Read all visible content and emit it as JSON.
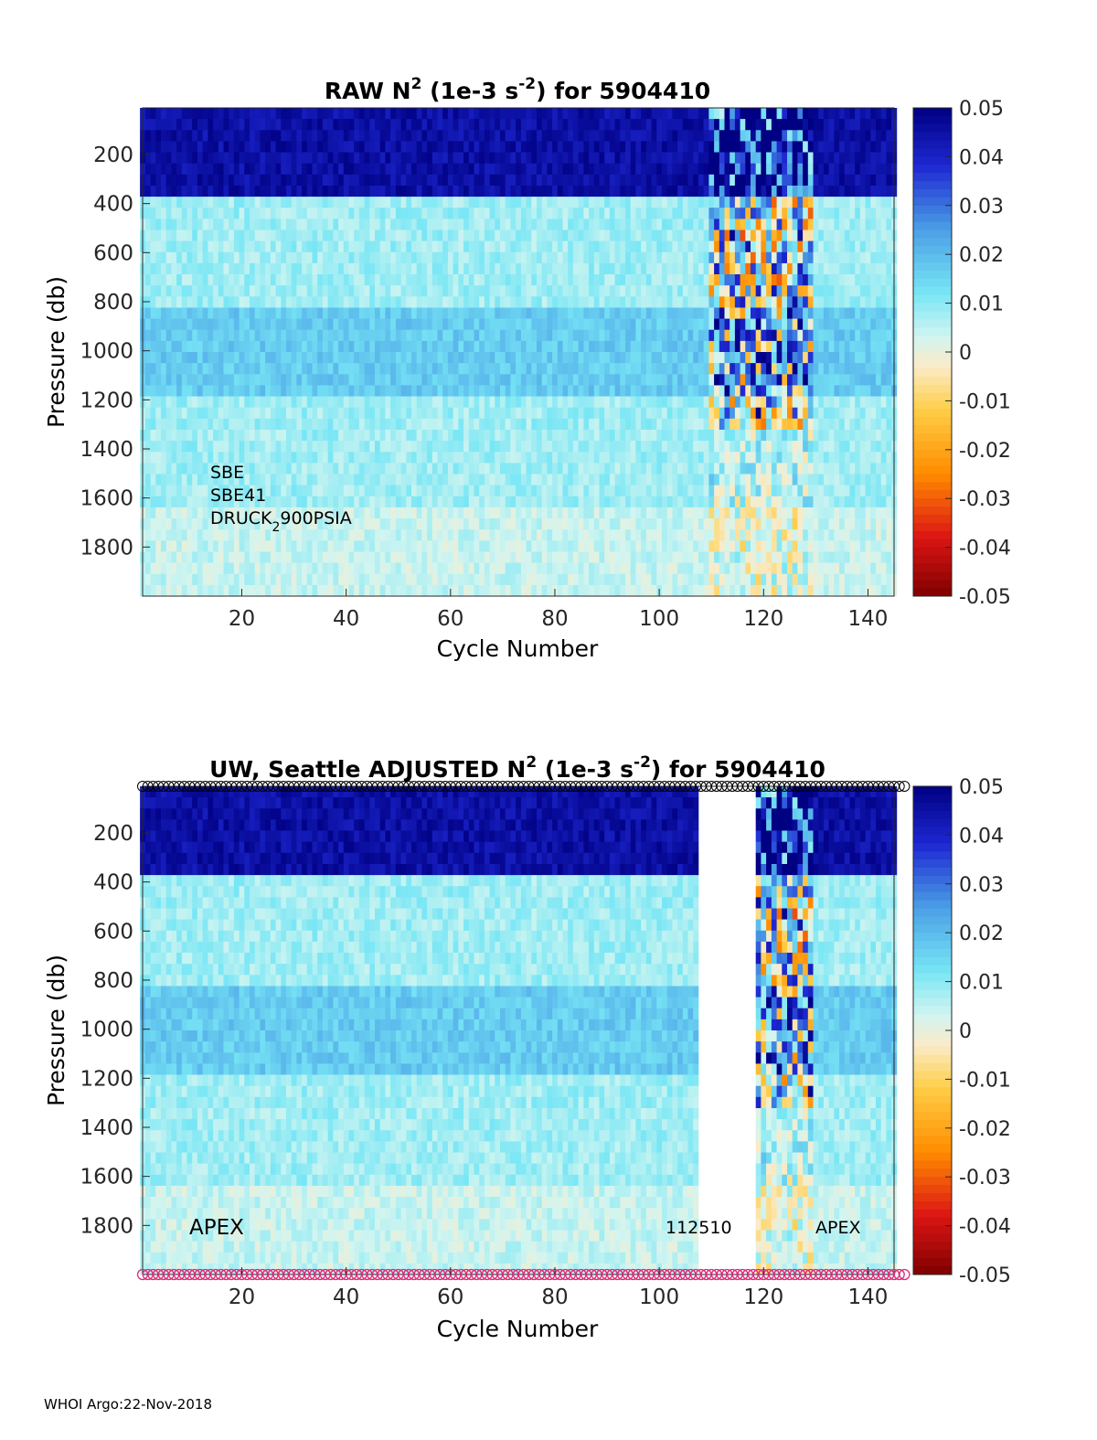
{
  "chart_data": [
    {
      "type": "heatmap",
      "title": "RAW N2 (1e-3 s-2) for 5904410",
      "title_parts": {
        "prefix": "RAW N",
        "sup1": "2",
        "mid": " (1e-3 s",
        "sup2": "-2",
        "suffix": ") for 5904410"
      },
      "xlabel": "Cycle Number",
      "ylabel": "Pressure (db)",
      "xlim": [
        1,
        145
      ],
      "ylim": [
        2000,
        10
      ],
      "x_ticks": [
        20,
        40,
        60,
        80,
        100,
        120,
        140
      ],
      "y_ticks": [
        200,
        400,
        600,
        800,
        1000,
        1200,
        1400,
        1600,
        1800
      ],
      "colorbar": {
        "clim": [
          -0.05,
          0.05
        ],
        "ticks": [
          "0.05",
          "0.04",
          "0.03",
          "0.02",
          "0.01",
          "0",
          "-0.01",
          "-0.02",
          "-0.03",
          "-0.04",
          "-0.05"
        ]
      },
      "annotations": {
        "line1": "SBE",
        "line2": "SBE41",
        "line3_main": "DRUCK",
        "line3_sub": "2",
        "line3_rest": "900PSIA"
      },
      "profiles": [
        {
          "pressure_range": [
            10,
            350
          ],
          "value": 0.045
        },
        {
          "pressure_range": [
            350,
            800
          ],
          "value": 0.008
        },
        {
          "pressure_range": [
            800,
            1150
          ],
          "value": 0.017
        },
        {
          "pressure_range": [
            1150,
            1600
          ],
          "value": 0.008
        },
        {
          "pressure_range": [
            1600,
            2000
          ],
          "value": 0.004
        }
      ],
      "noisy_cycles": [
        110,
        129
      ],
      "gap_cycles": []
    },
    {
      "type": "heatmap",
      "title": "UW, Seattle  ADJUSTED N2 (1e-3 s-2) for 5904410",
      "title_parts": {
        "prefix": "UW, Seattle  ADJUSTED N",
        "sup1": "2",
        "mid": " (1e-3 s",
        "sup2": "-2",
        "suffix": ") for 5904410"
      },
      "xlabel": "Cycle Number",
      "ylabel": "Pressure (db)",
      "xlim": [
        1,
        145
      ],
      "ylim": [
        2000,
        10
      ],
      "x_ticks": [
        20,
        40,
        60,
        80,
        100,
        120,
        140
      ],
      "y_ticks": [
        200,
        400,
        600,
        800,
        1000,
        1200,
        1400,
        1600,
        1800
      ],
      "colorbar": {
        "clim": [
          -0.05,
          0.05
        ],
        "ticks": [
          "0.05",
          "0.04",
          "0.03",
          "0.02",
          "0.01",
          "0",
          "-0.01",
          "-0.02",
          "-0.03",
          "-0.04",
          "-0.05"
        ]
      },
      "annotations": {
        "left_label": "APEX",
        "mid_label": "112510",
        "right_label": "APEX"
      },
      "profiles": [
        {
          "pressure_range": [
            10,
            350
          ],
          "value": 0.045
        },
        {
          "pressure_range": [
            350,
            800
          ],
          "value": 0.008
        },
        {
          "pressure_range": [
            800,
            1150
          ],
          "value": 0.017
        },
        {
          "pressure_range": [
            1150,
            1600
          ],
          "value": 0.008
        },
        {
          "pressure_range": [
            1600,
            2000
          ],
          "value": 0.004
        }
      ],
      "noisy_cycles": [
        119,
        129
      ],
      "gap_cycles": [
        108,
        119
      ],
      "qc_marker_colors": {
        "top": "#000000",
        "bottom": "#e0267a"
      }
    }
  ],
  "footer": "WHOI Argo:22-Nov-2018",
  "colors": {
    "axis": "#262626",
    "gap": "#ffffff"
  }
}
